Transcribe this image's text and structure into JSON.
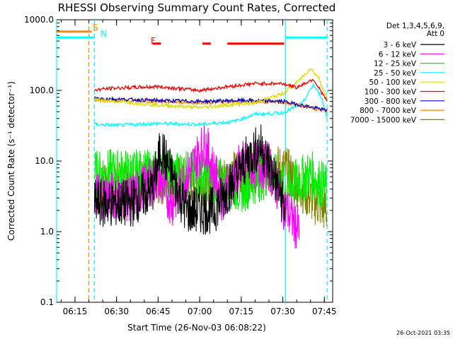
{
  "chart_data": {
    "type": "line",
    "title": "RHESSI Observing Summary Count Rates, Corrected",
    "xlabel": "Start Time (26-Nov-03 06:08:22)",
    "ylabel": "Corrected Count Rate (s⁻¹ detector⁻¹)",
    "y_scale": "log",
    "ylim": [
      0.1,
      1000
    ],
    "xlim": [
      "06:08:22",
      "07:48:00"
    ],
    "x_ticks": [
      "06:15",
      "06:30",
      "06:45",
      "07:00",
      "07:15",
      "07:30",
      "07:45"
    ],
    "y_ticks": [
      "0.1",
      "1.0",
      "10.0",
      "100.0",
      "1000.0"
    ],
    "legend_title": "Det 1,3,4,5,6,9, Att 0",
    "legend_title_line1": "Det 1,3,4,5,6,9,",
    "legend_title_line2": "Att 0",
    "legend_position": "right",
    "series": [
      {
        "name": "3 - 6 keV",
        "color": "#000000",
        "x": [
          "06:22",
          "06:35",
          "06:43",
          "06:46",
          "06:55",
          "07:05",
          "07:12",
          "07:18",
          "07:22",
          "07:27",
          "07:31"
        ],
        "values": [
          2.5,
          2.5,
          4.0,
          15.0,
          2.0,
          2.0,
          5.0,
          12.0,
          16.0,
          6.0,
          2.0
        ]
      },
      {
        "name": "6 - 12 keV",
        "color": "#ff00ff",
        "x": [
          "06:22",
          "06:35",
          "06:45",
          "06:50",
          "07:02",
          "07:08",
          "07:15",
          "07:25",
          "07:30",
          "07:36"
        ],
        "values": [
          3.5,
          3.0,
          6.0,
          2.5,
          18.0,
          3.0,
          9.0,
          8.5,
          2.5,
          1.0
        ]
      },
      {
        "name": "12 - 25 keV",
        "color": "#00ee00",
        "x": [
          "06:22",
          "06:30",
          "06:45",
          "07:00",
          "07:15",
          "07:25",
          "07:31",
          "07:40",
          "07:46"
        ],
        "values": [
          6.5,
          6.8,
          6.5,
          6.5,
          4.0,
          7.0,
          4.0,
          6.5,
          4.0
        ]
      },
      {
        "name": "25 - 50 keV",
        "color": "#00ffff",
        "x": [
          "06:22",
          "06:30",
          "06:45",
          "07:00",
          "07:12",
          "07:20",
          "07:30",
          "07:37",
          "07:41",
          "07:44",
          "07:46"
        ],
        "values": [
          33,
          32,
          34,
          33,
          36,
          46,
          48,
          65,
          120,
          80,
          40
        ]
      },
      {
        "name": "50 - 100 keV",
        "color": "#dddd00",
        "x": [
          "06:22",
          "06:30",
          "06:45",
          "07:00",
          "07:10",
          "07:20",
          "07:30",
          "07:36",
          "07:40",
          "07:43",
          "07:46"
        ],
        "values": [
          75,
          70,
          62,
          57,
          62,
          67,
          90,
          140,
          205,
          150,
          75
        ]
      },
      {
        "name": "100 - 300 keV",
        "color": "#ff0000",
        "x": [
          "06:22",
          "06:30",
          "06:45",
          "07:00",
          "07:10",
          "07:20",
          "07:30",
          "07:35",
          "07:41",
          "07:46"
        ],
        "values": [
          102,
          108,
          113,
          100,
          113,
          125,
          125,
          110,
          145,
          70
        ]
      },
      {
        "name": "300 - 800 keV",
        "color": "#0000cc",
        "x": [
          "06:22",
          "06:30",
          "06:45",
          "07:00",
          "07:15",
          "07:30",
          "07:46"
        ],
        "values": [
          78,
          75,
          72,
          70,
          72,
          70,
          52
        ]
      },
      {
        "name": "800 - 7000 keV",
        "color": "#ff8800",
        "x": [
          "06:22",
          "06:30",
          "06:45",
          "07:00",
          "07:15",
          "07:30",
          "07:46"
        ],
        "values": [
          73,
          72,
          70,
          67,
          70,
          68,
          51
        ]
      },
      {
        "name": "7000 - 15000 keV",
        "color": "#808000",
        "x": [
          "06:22",
          "06:30",
          "06:40",
          "06:55",
          "07:05",
          "07:15",
          "07:25",
          "07:31",
          "07:40",
          "07:46"
        ],
        "values": [
          3.5,
          4.5,
          5.0,
          5.5,
          5.0,
          7.0,
          8.0,
          7.5,
          3.0,
          2.0
        ]
      }
    ],
    "annotations": {
      "saa": {
        "label": "S",
        "color": "#ff8800",
        "level": 680,
        "x_start": "06:08:22",
        "x_end": "06:21:00"
      },
      "night": {
        "label": "N",
        "color": "#00ffff",
        "level": 560,
        "segments": [
          [
            "06:08:22",
            "06:22:00"
          ],
          [
            "07:31:00",
            "07:46:00"
          ]
        ]
      },
      "flare": {
        "label": "F",
        "color": "#ff0000",
        "level": 460,
        "segments": [
          [
            "06:43:00",
            "06:46:00"
          ],
          [
            "07:01:00",
            "07:04:00"
          ],
          [
            "07:10:00",
            "07:30:30"
          ]
        ]
      },
      "vertical_lines": [
        {
          "x": "06:08:22",
          "color": "#00ffff",
          "style": "solid"
        },
        {
          "x": "06:20:00",
          "color": "#ff8800",
          "style": "dashed"
        },
        {
          "x": "06:22:00",
          "color": "#00ffff",
          "style": "dashed"
        },
        {
          "x": "07:31:00",
          "color": "#00ffff",
          "style": "solid"
        },
        {
          "x": "07:46:00",
          "color": "#00ffff",
          "style": "dashed"
        }
      ]
    },
    "timestamp": "26-Oct-2021 03:35"
  }
}
